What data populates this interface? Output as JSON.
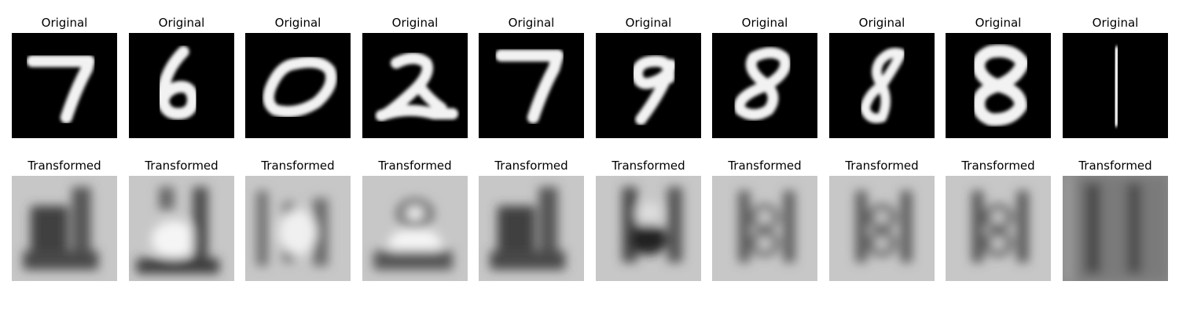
{
  "figure": {
    "panels": [
      {
        "original_title": "Original",
        "transformed_title": "Transformed",
        "digit": "7"
      },
      {
        "original_title": "Original",
        "transformed_title": "Transformed",
        "digit": "6"
      },
      {
        "original_title": "Original",
        "transformed_title": "Transformed",
        "digit": "0"
      },
      {
        "original_title": "Original",
        "transformed_title": "Transformed",
        "digit": "2"
      },
      {
        "original_title": "Original",
        "transformed_title": "Transformed",
        "digit": "7"
      },
      {
        "original_title": "Original",
        "transformed_title": "Transformed",
        "digit": "9"
      },
      {
        "original_title": "Original",
        "transformed_title": "Transformed",
        "digit": "8"
      },
      {
        "original_title": "Original",
        "transformed_title": "Transformed",
        "digit": "8"
      },
      {
        "original_title": "Original",
        "transformed_title": "Transformed",
        "digit": "8"
      },
      {
        "original_title": "Original",
        "transformed_title": "Transformed",
        "digit": "1"
      }
    ]
  }
}
